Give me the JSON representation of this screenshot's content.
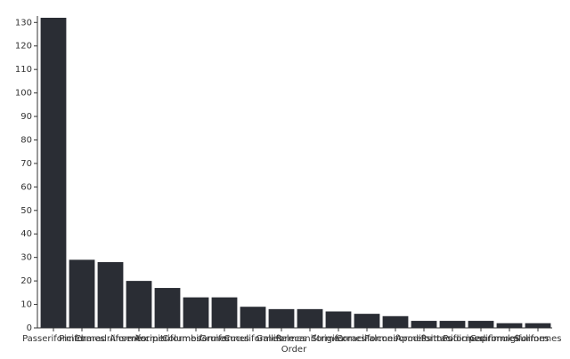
{
  "chart_data": {
    "type": "bar",
    "x_label": "Order",
    "categories": [
      "Passeriformes",
      "Piciformes",
      "Charadriiformes",
      "Anseriformes",
      "Accipitriformes",
      "Columbiformes",
      "Gruiformes",
      "Cuculiformes",
      "Galliformes",
      "Pelecaniformes",
      "Strigiformes",
      "Coraciiformes",
      "Falconiformes",
      "Apodiformes",
      "Psittaciformes",
      "Podicipediformes",
      "Caprimulgiformes",
      "Suliformes"
    ],
    "values": [
      132,
      29,
      28,
      20,
      17,
      13,
      13,
      9,
      8,
      8,
      7,
      6,
      5,
      3,
      3,
      3,
      2,
      2
    ],
    "color": "#2a2d34",
    "ylim": [
      0,
      132
    ],
    "yticks": [
      0,
      10,
      20,
      30,
      40,
      50,
      60,
      70,
      80,
      90,
      100,
      110,
      120,
      130
    ]
  }
}
